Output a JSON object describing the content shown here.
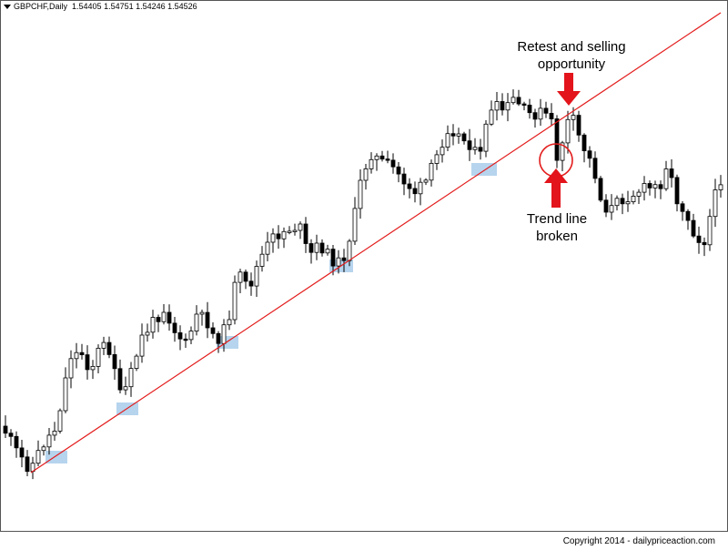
{
  "header": {
    "symbol": "GBPCHF,Daily",
    "ohlc": "1.54405 1.54751 1.54246 1.54526"
  },
  "annotations": {
    "retest": [
      "Retest and selling",
      "opportunity"
    ],
    "break": [
      "Trend line",
      "broken"
    ]
  },
  "copyright": "Copyright 2014 - dailypriceaction.com",
  "colors": {
    "trendline": "#e31b1b",
    "arrow": "#e3141b",
    "touch_zone": "#a9cdea",
    "bull_body": "#ffffff",
    "bear_body": "#000000",
    "frame": "#555555"
  },
  "chart_data": {
    "type": "candlestick",
    "symbol": "GBPCHF",
    "timeframe": "Daily",
    "last_bar": {
      "open": 1.54405,
      "high": 1.54751,
      "low": 1.54246,
      "close": 1.54526
    },
    "trend": "uptrend",
    "trendline": "rising support line connecting the higher lows, later broken and retested",
    "touch_points": 6,
    "events": [
      "Trend line broken",
      "Retest and selling opportunity"
    ]
  }
}
